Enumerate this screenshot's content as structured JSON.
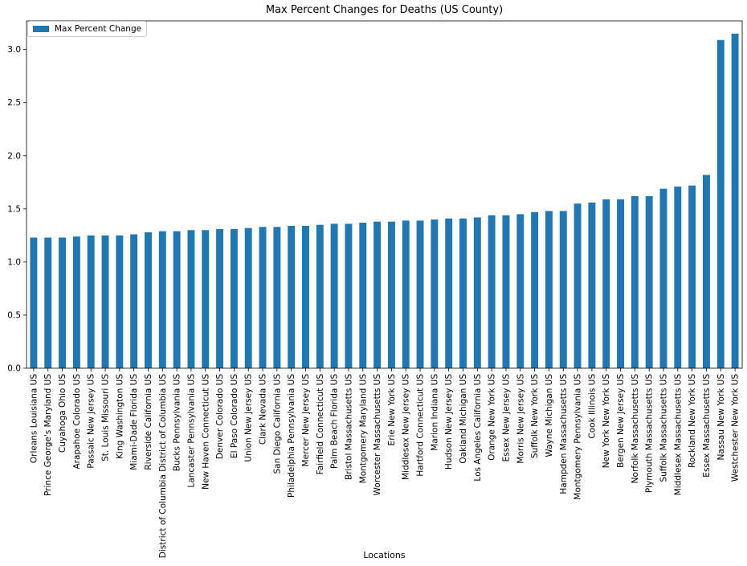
{
  "chart_data": {
    "type": "bar",
    "title": "Max Percent Changes for Deaths (US County)",
    "xlabel": "Locations",
    "ylabel": "",
    "ylim": [
      0,
      3.27
    ],
    "yticks": [
      0.0,
      0.5,
      1.0,
      1.5,
      2.0,
      2.5,
      3.0
    ],
    "ytick_labels": [
      "0.0",
      "0.5",
      "1.0",
      "1.5",
      "2.0",
      "2.5",
      "3.0"
    ],
    "grid": false,
    "legend_position": "top-left",
    "colors": {
      "bar": "#1f77b4",
      "axis": "#000000"
    },
    "categories": [
      "Orleans Louisiana US",
      "Prince George's Maryland US",
      "Cuyahoga Ohio US",
      "Arapahoe Colorado US",
      "Passaic New Jersey US",
      "St. Louis Missouri US",
      "King Washington US",
      "Miami-Dade Florida US",
      "Riverside California US",
      "District of Columbia District of Columbia US",
      "Bucks Pennsylvania US",
      "Lancaster Pennsylvania US",
      "New Haven Connecticut US",
      "Denver Colorado US",
      "El Paso Colorado US",
      "Union New Jersey US",
      "Clark Nevada US",
      "San Diego California US",
      "Philadelphia Pennsylvania US",
      "Mercer New Jersey US",
      "Fairfield Connecticut US",
      "Palm Beach Florida US",
      "Bristol Massachusetts US",
      "Montgomery Maryland US",
      "Worcester Massachusetts US",
      "Erie New York US",
      "Middlesex New Jersey US",
      "Hartford Connecticut US",
      "Marion Indiana US",
      "Hudson New Jersey US",
      "Oakland Michigan US",
      "Los Angeles California US",
      "Orange New York US",
      "Essex New Jersey US",
      "Morris New Jersey US",
      "Suffolk New York US",
      "Wayne Michigan US",
      "Hampden Massachusetts US",
      "Montgomery Pennsylvania US",
      "Cook Illinois US",
      "New York New York US",
      "Bergen New Jersey US",
      "Norfolk Massachusetts US",
      "Plymouth Massachusetts US",
      "Suffolk Massachusetts US",
      "Middlesex Massachusetts US",
      "Rockland New York US",
      "Essex Massachusetts US",
      "Nassau New York US",
      "Westchester New York US"
    ],
    "series": [
      {
        "name": "Max Percent Change",
        "values": [
          1.23,
          1.23,
          1.23,
          1.24,
          1.25,
          1.25,
          1.25,
          1.26,
          1.28,
          1.29,
          1.29,
          1.3,
          1.3,
          1.31,
          1.31,
          1.32,
          1.33,
          1.33,
          1.34,
          1.34,
          1.35,
          1.36,
          1.36,
          1.37,
          1.38,
          1.38,
          1.39,
          1.39,
          1.4,
          1.41,
          1.41,
          1.42,
          1.44,
          1.44,
          1.45,
          1.47,
          1.48,
          1.48,
          1.55,
          1.56,
          1.59,
          1.59,
          1.62,
          1.62,
          1.69,
          1.71,
          1.72,
          1.82,
          3.09,
          3.15
        ]
      }
    ]
  }
}
